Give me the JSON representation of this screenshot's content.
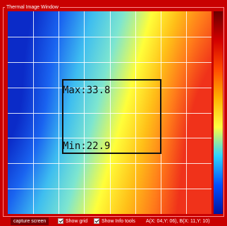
{
  "window": {
    "title": "Thermal Image Window"
  },
  "thermal": {
    "max_label": "Max:33.8",
    "min_label": "Min:22.9",
    "grid_visible": true,
    "grid_columns": 8,
    "grid_rows": 8
  },
  "colors": {
    "frame": "#c90000",
    "frame_line": "#ff8a8a",
    "button_bg": "#7a0000",
    "heat_gradient": [
      "#0b2bc8",
      "#1a64f0",
      "#3fbef0",
      "#7ee6d0",
      "#ffff3a",
      "#ffbf18",
      "#ff7a1a",
      "#f0321a"
    ],
    "scale_gradient": [
      "#6a0000",
      "#d20000",
      "#ff4a00",
      "#ffb000",
      "#ffff40",
      "#2ed3ff",
      "#0050ff",
      "#0016a0"
    ]
  },
  "statusbar": {
    "capture_label": "capture screen",
    "show_grid_label": "Show grid",
    "show_grid_checked": true,
    "show_info_label": "Show Info tools",
    "show_info_checked": true,
    "coords_text": "A(X: 04,Y: 06), B(X: 11,Y: 10)"
  }
}
